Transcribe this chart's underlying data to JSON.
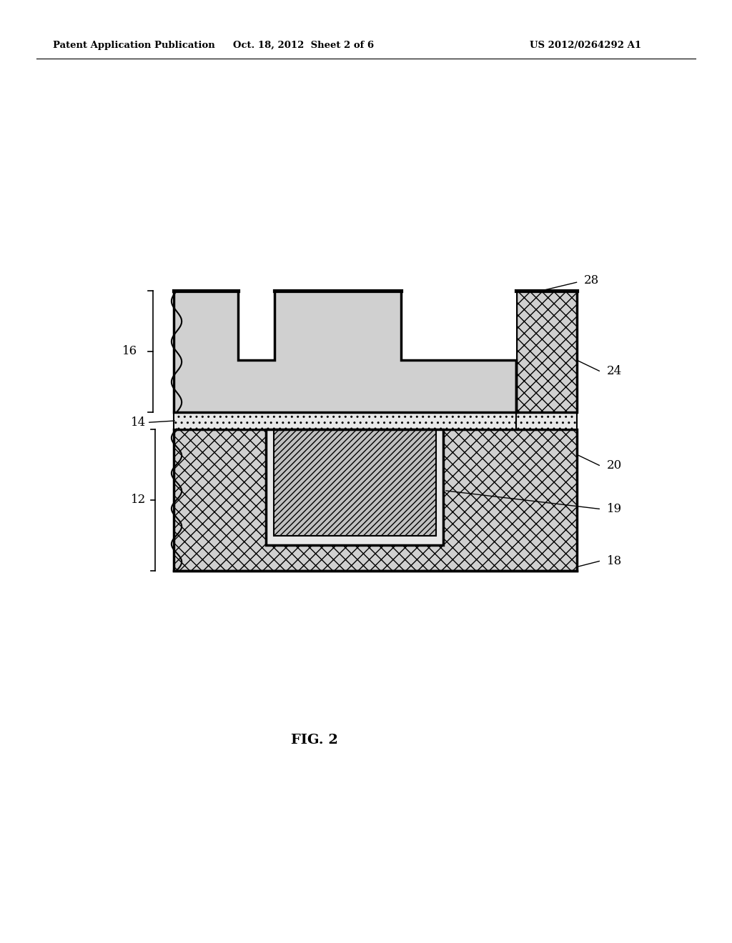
{
  "bg_color": "#ffffff",
  "header_left": "Patent Application Publication",
  "header_center": "Oct. 18, 2012  Sheet 2 of 6",
  "header_right": "US 2012/0264292 A1",
  "footer_label": "FIG. 2",
  "crosshatch_facecolor": "#d0d0d0",
  "diag_facecolor": "#c8c8c8",
  "stipple_facecolor": "#e8e8e8",
  "outline_color": "#000000",
  "lw_main": 2.5,
  "lw_thin": 1.5
}
